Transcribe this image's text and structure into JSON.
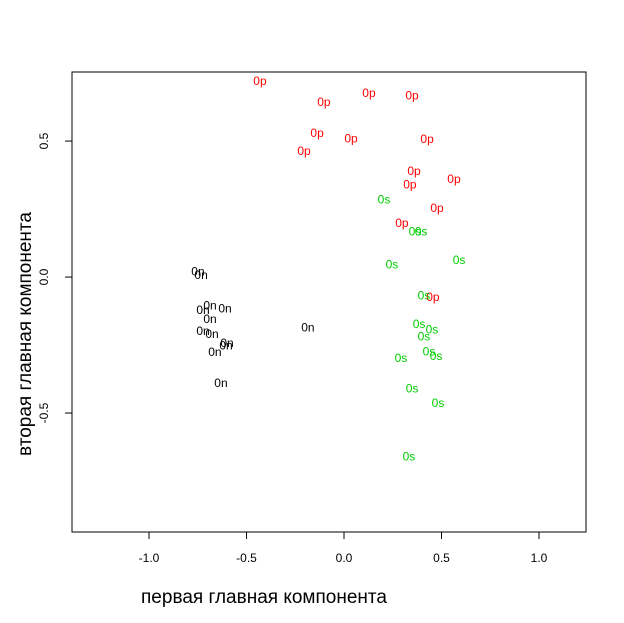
{
  "chart_data": {
    "type": "text_scatter",
    "x_label": "первая главная компонента",
    "y_label": "вторая главная компонента",
    "xlim": [
      -1.395,
      1.241
    ],
    "ylim": [
      -0.9375,
      0.754
    ],
    "xticks": [
      {
        "value": -1,
        "label": "-1.0"
      },
      -0.5,
      {
        "value": 0,
        "label": "0.0"
      },
      0.5,
      {
        "value": 1,
        "label": "1.0"
      }
    ],
    "yticks": [
      -0.5,
      {
        "value": 0,
        "label": "0.0"
      },
      0.5
    ],
    "grid": false,
    "series": [
      {
        "label": "0p",
        "color": "#ff0000",
        "x": [
          -0.431,
          -0.103,
          0.128,
          0.349,
          -0.138,
          0.036,
          -0.205,
          0.426,
          0.359,
          0.338,
          0.564,
          0.477,
          0.297,
          0.456
        ],
        "y": [
          0.717,
          0.64,
          0.673,
          0.665,
          0.526,
          0.507,
          0.46,
          0.504,
          0.386,
          0.338,
          0.357,
          0.25,
          0.195,
          -0.077
        ]
      },
      {
        "label": "0s",
        "color": "#00cd00",
        "x": [
          0.205,
          0.364,
          0.395,
          0.246,
          0.59,
          0.41,
          0.385,
          0.451,
          0.41,
          0.292,
          0.436,
          0.472,
          0.349,
          0.482,
          0.333
        ],
        "y": [
          0.283,
          0.165,
          0.165,
          0.044,
          0.059,
          -0.07,
          -0.176,
          -0.195,
          -0.221,
          -0.301,
          -0.276,
          -0.294,
          -0.412,
          -0.467,
          -0.662
        ]
      },
      {
        "label": "0n",
        "color": "#000000",
        "x": [
          -0.749,
          -0.733,
          -0.687,
          -0.61,
          -0.723,
          -0.687,
          -0.723,
          -0.677,
          -0.6,
          -0.605,
          -0.662,
          -0.185,
          -0.631
        ],
        "y": [
          0.018,
          0.004,
          -0.107,
          -0.118,
          -0.125,
          -0.158,
          -0.202,
          -0.213,
          -0.246,
          -0.254,
          -0.279,
          -0.188,
          -0.393
        ]
      }
    ]
  }
}
